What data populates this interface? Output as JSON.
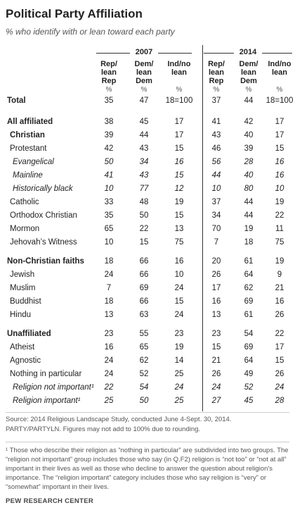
{
  "header": {
    "title": "Political Party Affiliation",
    "subtitle": "% who identify with or lean toward each party"
  },
  "table": {
    "years": [
      "2007",
      "2014"
    ],
    "columns": [
      [
        "Rep/",
        "lean",
        "Rep"
      ],
      [
        "Dem/",
        "lean",
        "Dem"
      ],
      [
        "Ind/no",
        "lean"
      ]
    ],
    "unit": "%",
    "rows": [
      [
        "Total",
        35,
        47,
        "18=100",
        37,
        44,
        "18=100"
      ],
      [
        "All affiliated",
        38,
        45,
        17,
        41,
        42,
        17
      ],
      [
        "Christian",
        39,
        44,
        17,
        43,
        40,
        17
      ],
      [
        "Protestant",
        42,
        43,
        15,
        46,
        39,
        15
      ],
      [
        "Evangelical",
        50,
        34,
        16,
        56,
        28,
        16
      ],
      [
        "Mainline",
        41,
        43,
        15,
        44,
        40,
        16
      ],
      [
        "Historically black",
        10,
        77,
        12,
        10,
        80,
        10
      ],
      [
        "Catholic",
        33,
        48,
        19,
        37,
        44,
        19
      ],
      [
        "Orthodox Christian",
        35,
        50,
        15,
        34,
        44,
        22
      ],
      [
        "Mormon",
        65,
        22,
        13,
        70,
        19,
        11
      ],
      [
        "Jehovah’s Witness",
        10,
        15,
        75,
        7,
        18,
        75
      ],
      [
        "Non-Christian faiths",
        18,
        66,
        16,
        20,
        61,
        19
      ],
      [
        "Jewish",
        24,
        66,
        10,
        26,
        64,
        9
      ],
      [
        "Muslim",
        7,
        69,
        24,
        17,
        62,
        21
      ],
      [
        "Buddhist",
        18,
        66,
        15,
        16,
        69,
        16
      ],
      [
        "Hindu",
        13,
        63,
        24,
        13,
        61,
        26
      ],
      [
        "Unaffiliated",
        23,
        55,
        23,
        23,
        54,
        22
      ],
      [
        "Atheist",
        16,
        65,
        19,
        15,
        69,
        17
      ],
      [
        "Agnostic",
        24,
        62,
        14,
        21,
        64,
        15
      ],
      [
        "Nothing in particular",
        24,
        52,
        25,
        26,
        49,
        26
      ],
      [
        "Religion not important¹",
        22,
        54,
        24,
        24,
        52,
        24
      ],
      [
        "Religion important¹",
        25,
        50,
        25,
        27,
        45,
        28
      ]
    ]
  },
  "notes": {
    "source": "Source: 2014 Religious Landscape Study, conducted June 4-Sept. 30, 2014.",
    "question": "PARTY/PARTYLN. Figures may not add to 100% due to rounding.",
    "footnote": "¹ Those who describe their religion as “nothing in particular” are subdivided into two groups. The “religion not important” group includes those who say (in Q.F2) religion is “not too” or “not at all” important in their lives as well as those who decline to answer the question about religion’s importance. The “religion important” category includes those who say religion is “very” or “somewhat” important in their lives.",
    "brand": "PEW RESEARCH CENTER"
  }
}
